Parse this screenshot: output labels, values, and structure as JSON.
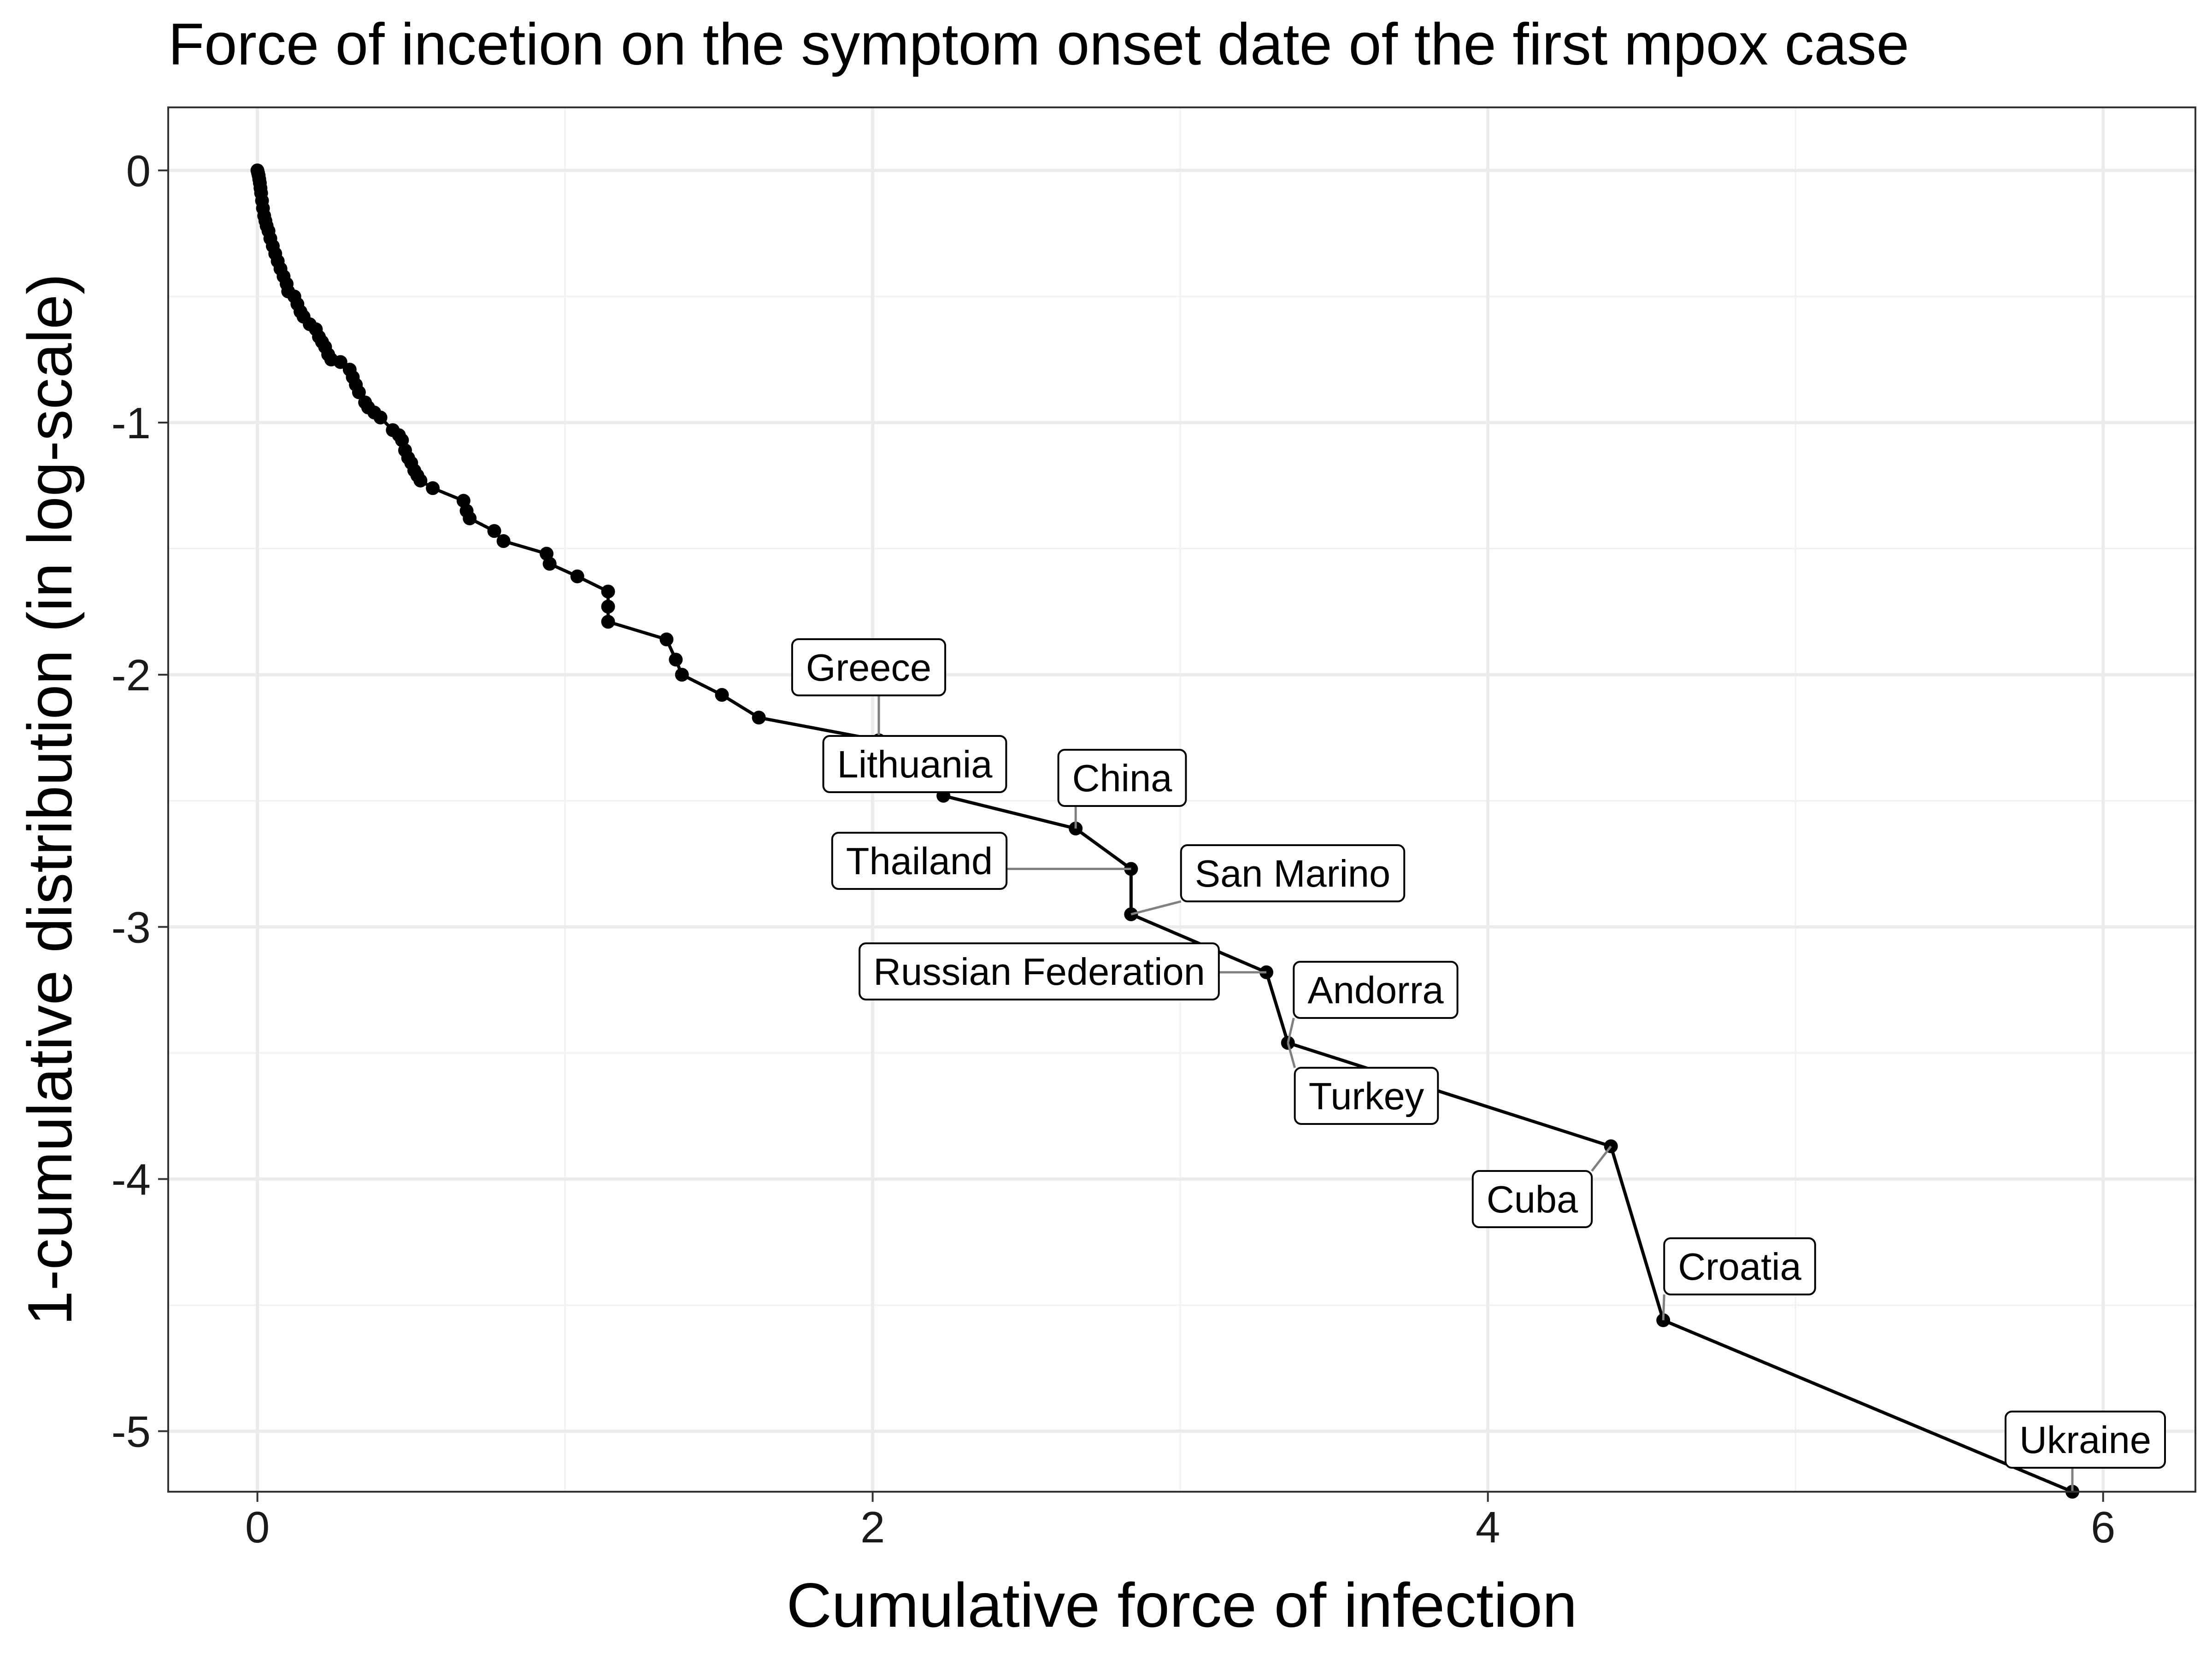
{
  "chart_data": {
    "type": "line",
    "title": "Force of incetion on the symptom onset date of the first mpox case",
    "xlabel": "Cumulative force of infection",
    "ylabel": "1-cumulative distribution (in log-scale)",
    "xlim": [
      -0.29,
      6.3
    ],
    "ylim": [
      -5.24,
      0.25
    ],
    "xticks": [
      0,
      2,
      4,
      6
    ],
    "xtick_labels": [
      "0",
      "2",
      "4",
      "6"
    ],
    "yticks": [
      0,
      -1,
      -2,
      -3,
      -4,
      -5
    ],
    "ytick_labels": [
      "0",
      "-1",
      "-2",
      "-3",
      "-4",
      "-5"
    ],
    "grid": true,
    "legend": "none",
    "line_color": "#000000",
    "series": [
      {
        "points": [
          [
            0.0,
            0.0
          ],
          [
            0.002,
            -0.01
          ],
          [
            0.004,
            -0.02
          ],
          [
            0.006,
            -0.035
          ],
          [
            0.008,
            -0.05
          ],
          [
            0.01,
            -0.07
          ],
          [
            0.012,
            -0.09
          ],
          [
            0.015,
            -0.12
          ],
          [
            0.018,
            -0.15
          ],
          [
            0.022,
            -0.18
          ],
          [
            0.026,
            -0.2
          ],
          [
            0.03,
            -0.22
          ],
          [
            0.036,
            -0.24
          ],
          [
            0.042,
            -0.27
          ],
          [
            0.05,
            -0.3
          ],
          [
            0.058,
            -0.33
          ],
          [
            0.066,
            -0.36
          ],
          [
            0.075,
            -0.39
          ],
          [
            0.085,
            -0.42
          ],
          [
            0.095,
            -0.45
          ],
          [
            0.1,
            -0.48
          ],
          [
            0.12,
            -0.5
          ],
          [
            0.13,
            -0.53
          ],
          [
            0.14,
            -0.56
          ],
          [
            0.15,
            -0.58
          ],
          [
            0.17,
            -0.61
          ],
          [
            0.19,
            -0.63
          ],
          [
            0.2,
            -0.66
          ],
          [
            0.21,
            -0.68
          ],
          [
            0.22,
            -0.7
          ],
          [
            0.23,
            -0.73
          ],
          [
            0.24,
            -0.75
          ],
          [
            0.27,
            -0.76
          ],
          [
            0.3,
            -0.79
          ],
          [
            0.31,
            -0.82
          ],
          [
            0.32,
            -0.85
          ],
          [
            0.33,
            -0.88
          ],
          [
            0.35,
            -0.92
          ],
          [
            0.36,
            -0.94
          ],
          [
            0.38,
            -0.96
          ],
          [
            0.4,
            -0.98
          ],
          [
            0.44,
            -1.03
          ],
          [
            0.46,
            -1.05
          ],
          [
            0.47,
            -1.07
          ],
          [
            0.48,
            -1.11
          ],
          [
            0.49,
            -1.14
          ],
          [
            0.5,
            -1.16
          ],
          [
            0.51,
            -1.19
          ],
          [
            0.52,
            -1.21
          ],
          [
            0.53,
            -1.23
          ],
          [
            0.57,
            -1.26
          ],
          [
            0.67,
            -1.31
          ],
          [
            0.68,
            -1.35
          ],
          [
            0.69,
            -1.38
          ],
          [
            0.77,
            -1.43
          ],
          [
            0.8,
            -1.47
          ],
          [
            0.94,
            -1.52
          ],
          [
            0.95,
            -1.56
          ],
          [
            1.04,
            -1.61
          ],
          [
            1.14,
            -1.67
          ],
          [
            1.14,
            -1.73
          ],
          [
            1.14,
            -1.79
          ],
          [
            1.33,
            -1.86
          ],
          [
            1.36,
            -1.94
          ],
          [
            1.38,
            -2.0
          ],
          [
            1.51,
            -2.08
          ],
          [
            1.63,
            -2.17
          ],
          [
            2.02,
            -2.26
          ],
          [
            2.23,
            -2.48
          ],
          [
            2.66,
            -2.61
          ],
          [
            2.84,
            -2.77
          ],
          [
            2.84,
            -2.95
          ],
          [
            3.28,
            -3.18
          ],
          [
            3.35,
            -3.46
          ],
          [
            4.4,
            -3.87
          ],
          [
            4.57,
            -4.56
          ],
          [
            5.9,
            -5.24
          ]
        ]
      }
    ],
    "labels": [
      {
        "text": "Greece",
        "x": 2.02,
        "y": -2.26
      },
      {
        "text": "Lithuania",
        "x": 2.23,
        "y": -2.48
      },
      {
        "text": "China",
        "x": 2.66,
        "y": -2.61
      },
      {
        "text": "Thailand",
        "x": 2.84,
        "y": -2.77
      },
      {
        "text": "San Marino",
        "x": 2.84,
        "y": -2.95
      },
      {
        "text": "Russian Federation",
        "x": 3.28,
        "y": -3.18
      },
      {
        "text": "Andorra",
        "x": 3.35,
        "y": -3.46
      },
      {
        "text": "Turkey",
        "x": 3.35,
        "y": -3.46
      },
      {
        "text": "Cuba",
        "x": 4.4,
        "y": -3.87
      },
      {
        "text": "Croatia",
        "x": 4.57,
        "y": -4.56
      },
      {
        "text": "Ukraine",
        "x": 5.9,
        "y": -5.24
      }
    ]
  }
}
